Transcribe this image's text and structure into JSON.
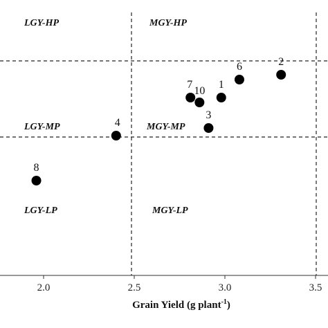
{
  "chart_data": {
    "type": "scatter",
    "x_axis": {
      "ticks": [
        2.0,
        2.5,
        3.0,
        3.5
      ],
      "tick_labels": [
        "2.0",
        "2.5",
        "3.0",
        "3.5"
      ],
      "xlim": [
        1.65,
        3.55
      ],
      "label": "Grain Yield (g plant",
      "label_superscript": "-1",
      "label_suffix": ")"
    },
    "y_axis": {
      "visible": false
    },
    "grid": false,
    "legend": "none",
    "reference_lines": {
      "x": [
        2.4,
        3.5
      ],
      "y_upper_line": true,
      "y_lower_line": true
    },
    "quadrant_labels": [
      "LGY-HP",
      "MGY-HP",
      "LGY-MP",
      "MGY-MP",
      "LGY-LP",
      "MGY-LP"
    ],
    "points": [
      {
        "label": "2",
        "x": 3.31
      },
      {
        "label": "6",
        "x": 3.08
      },
      {
        "label": "7",
        "x": 2.81
      },
      {
        "label": "10",
        "x": 2.86
      },
      {
        "label": "1",
        "x": 2.98
      },
      {
        "label": "3",
        "x": 2.91
      },
      {
        "label": "4",
        "x": 2.4
      },
      {
        "label": "8",
        "x": 1.96
      }
    ],
    "point_color": "#000000"
  }
}
